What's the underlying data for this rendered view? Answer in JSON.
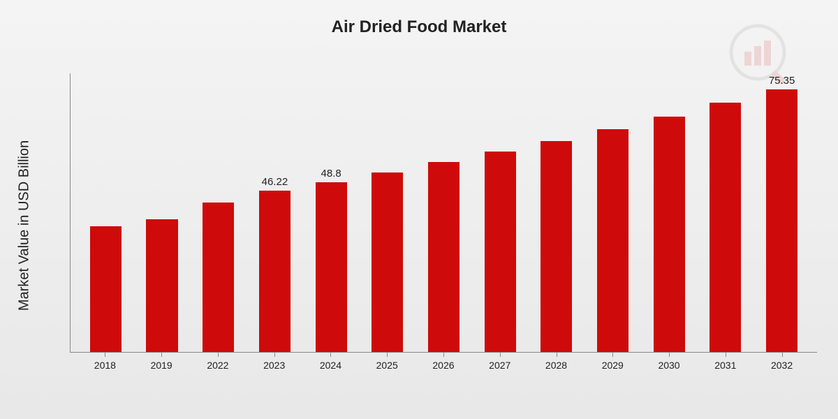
{
  "chart": {
    "type": "bar",
    "title": "Air Dried Food Market",
    "y_axis_label": "Market Value in USD Billion",
    "y_max": 80,
    "title_fontsize": 24,
    "label_fontsize": 20,
    "tick_fontsize": 14,
    "value_fontsize": 15,
    "bar_color": "#cf0a0a",
    "background_gradient_top": "#f4f4f4",
    "background_gradient_bottom": "#e8e8e8",
    "axis_color": "#888888",
    "text_color": "#222222",
    "bar_width_pct": 56,
    "categories": [
      "2018",
      "2019",
      "2022",
      "2023",
      "2024",
      "2025",
      "2026",
      "2027",
      "2028",
      "2029",
      "2030",
      "2031",
      "2032"
    ],
    "values": [
      36,
      38,
      43,
      46.22,
      48.8,
      51.5,
      54.5,
      57.5,
      60.5,
      64,
      67.5,
      71.5,
      75.35
    ],
    "show_value_label": [
      false,
      false,
      false,
      true,
      true,
      false,
      false,
      false,
      false,
      false,
      false,
      false,
      true
    ]
  },
  "watermark": {
    "icon_name": "market-research-logo",
    "opacity": 0.12,
    "bar_fill": "#cf0a0a",
    "circle_stroke": "#777777",
    "handle_fill": "#cf0a0a"
  }
}
